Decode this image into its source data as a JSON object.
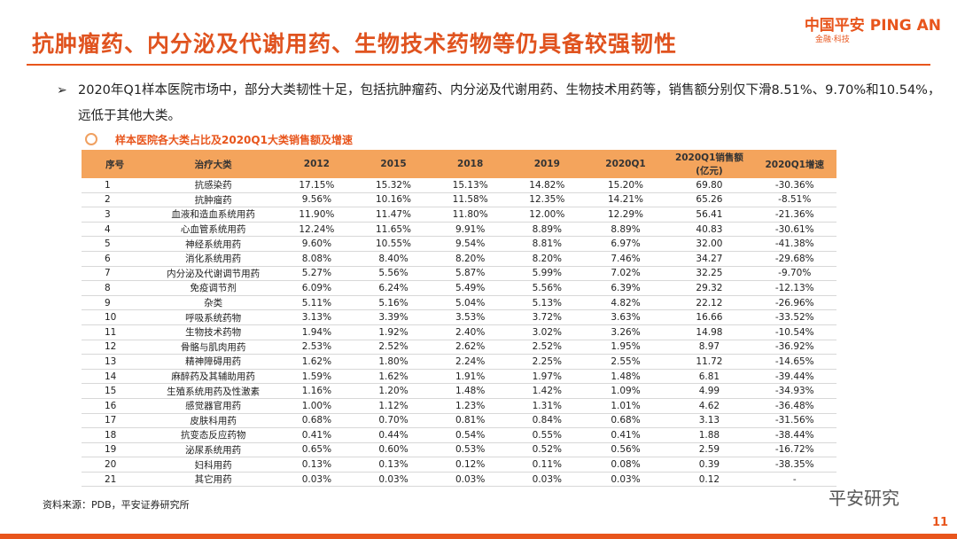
{
  "header": {
    "title": "抗肿瘤药、内分泌及代谢用药、生物技术药物等仍具备较强韧性",
    "logo": "中国平安 PING AN",
    "logo_sub": "金融·科技"
  },
  "bullet": "2020年Q1样本医院市场中，部分大类韧性十足，包括抗肿瘤药、内分泌及代谢用药、生物技术用药等，销售额分别仅下滑8.51%、9.70%和10.54%，远低于其他大类。",
  "table": {
    "title": "样本医院各大类占比及2020Q1大类销售额及增速",
    "headers": [
      "序号",
      "治疗大类",
      "2012",
      "2015",
      "2018",
      "2019",
      "2020Q1",
      "2020Q1销售额(亿元)",
      "2020Q1增速"
    ],
    "rows": [
      [
        "1",
        "抗感染药",
        "17.15%",
        "15.32%",
        "15.13%",
        "14.82%",
        "15.20%",
        "69.80",
        "-30.36%"
      ],
      [
        "2",
        "抗肿瘤药",
        "9.56%",
        "10.16%",
        "11.58%",
        "12.35%",
        "14.21%",
        "65.26",
        "-8.51%"
      ],
      [
        "3",
        "血液和造血系统用药",
        "11.90%",
        "11.47%",
        "11.80%",
        "12.00%",
        "12.29%",
        "56.41",
        "-21.36%"
      ],
      [
        "4",
        "心血管系统用药",
        "12.24%",
        "11.65%",
        "9.91%",
        "8.89%",
        "8.89%",
        "40.83",
        "-30.61%"
      ],
      [
        "5",
        "神经系统用药",
        "9.60%",
        "10.55%",
        "9.54%",
        "8.81%",
        "6.97%",
        "32.00",
        "-41.38%"
      ],
      [
        "6",
        "消化系统用药",
        "8.08%",
        "8.40%",
        "8.20%",
        "8.20%",
        "7.46%",
        "34.27",
        "-29.68%"
      ],
      [
        "7",
        "内分泌及代谢调节用药",
        "5.27%",
        "5.56%",
        "5.87%",
        "5.99%",
        "7.02%",
        "32.25",
        "-9.70%"
      ],
      [
        "8",
        "免疫调节剂",
        "6.09%",
        "6.24%",
        "5.49%",
        "5.56%",
        "6.39%",
        "29.32",
        "-12.13%"
      ],
      [
        "9",
        "杂类",
        "5.11%",
        "5.16%",
        "5.04%",
        "5.13%",
        "4.82%",
        "22.12",
        "-26.96%"
      ],
      [
        "10",
        "呼吸系统药物",
        "3.13%",
        "3.39%",
        "3.53%",
        "3.72%",
        "3.63%",
        "16.66",
        "-33.52%"
      ],
      [
        "11",
        "生物技术药物",
        "1.94%",
        "1.92%",
        "2.40%",
        "3.02%",
        "3.26%",
        "14.98",
        "-10.54%"
      ],
      [
        "12",
        "骨骼与肌肉用药",
        "2.53%",
        "2.52%",
        "2.62%",
        "2.52%",
        "1.95%",
        "8.97",
        "-36.92%"
      ],
      [
        "13",
        "精神障碍用药",
        "1.62%",
        "1.80%",
        "2.24%",
        "2.25%",
        "2.55%",
        "11.72",
        "-14.65%"
      ],
      [
        "14",
        "麻醉药及其辅助用药",
        "1.59%",
        "1.62%",
        "1.91%",
        "1.97%",
        "1.48%",
        "6.81",
        "-39.44%"
      ],
      [
        "15",
        "生殖系统用药及性激素",
        "1.16%",
        "1.20%",
        "1.48%",
        "1.42%",
        "1.09%",
        "4.99",
        "-34.93%"
      ],
      [
        "16",
        "感觉器官用药",
        "1.00%",
        "1.12%",
        "1.23%",
        "1.31%",
        "1.01%",
        "4.62",
        "-36.48%"
      ],
      [
        "17",
        "皮肤科用药",
        "0.68%",
        "0.70%",
        "0.81%",
        "0.84%",
        "0.68%",
        "3.13",
        "-31.56%"
      ],
      [
        "18",
        "抗变态反应药物",
        "0.41%",
        "0.44%",
        "0.54%",
        "0.55%",
        "0.41%",
        "1.88",
        "-38.44%"
      ],
      [
        "19",
        "泌尿系统用药",
        "0.65%",
        "0.60%",
        "0.53%",
        "0.52%",
        "0.56%",
        "2.59",
        "-16.72%"
      ],
      [
        "20",
        "妇科用药",
        "0.13%",
        "0.13%",
        "0.12%",
        "0.11%",
        "0.08%",
        "0.39",
        "-38.35%"
      ],
      [
        "21",
        "其它用药",
        "0.03%",
        "0.03%",
        "0.03%",
        "0.03%",
        "0.03%",
        "0.12",
        "-"
      ]
    ]
  },
  "source": "资料来源：PDB，平安证券研究所",
  "watermark": "平安研究",
  "page_number": "11"
}
